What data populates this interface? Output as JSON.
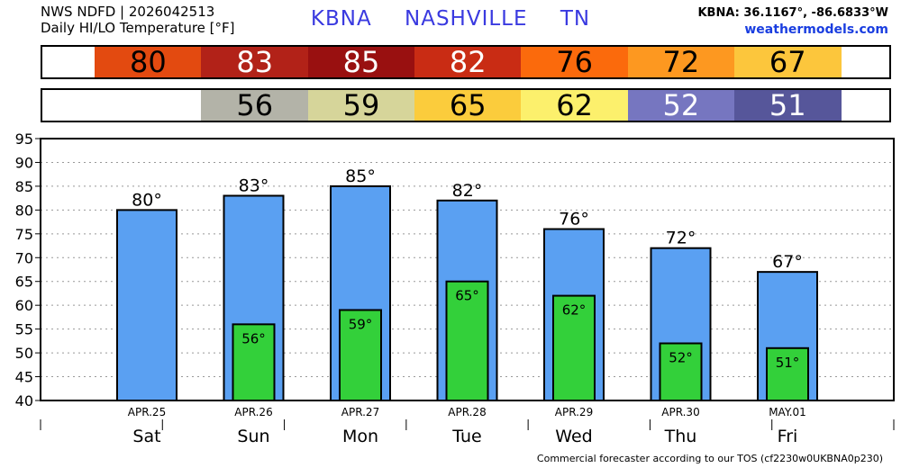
{
  "header": {
    "line1": "NWS NDFD | 2026042513",
    "line2": "Daily HI/LO Temperature [°F]",
    "station": "KBNA",
    "city": "NASHVILLE",
    "state": "TN",
    "coords": "KBNA: 36.1167°, -86.6833°W",
    "site": "weathermodels.com"
  },
  "footer": "Commercial forecaster according to our TOS (cf2230w0UKBNA0p230)",
  "hi_strip": [
    {
      "value": "80",
      "bg": "#e34a10",
      "fg": "#000000"
    },
    {
      "value": "83",
      "bg": "#b22218",
      "fg": "#ffffff"
    },
    {
      "value": "85",
      "bg": "#991010",
      "fg": "#ffffff"
    },
    {
      "value": "82",
      "bg": "#c92c14",
      "fg": "#ffffff"
    },
    {
      "value": "76",
      "bg": "#fb6a0c",
      "fg": "#000000"
    },
    {
      "value": "72",
      "bg": "#fd9820",
      "fg": "#000000"
    },
    {
      "value": "67",
      "bg": "#fcc63c",
      "fg": "#000000"
    }
  ],
  "lo_strip": [
    {
      "value": "56",
      "bg": "#b3b3a8",
      "fg": "#000000"
    },
    {
      "value": "59",
      "bg": "#d6d59a",
      "fg": "#000000"
    },
    {
      "value": "65",
      "bg": "#fbcc3c",
      "fg": "#000000"
    },
    {
      "value": "62",
      "bg": "#fcf06c",
      "fg": "#000000"
    },
    {
      "value": "52",
      "bg": "#7676c0",
      "fg": "#ffffff"
    },
    {
      "value": "51",
      "bg": "#56569a",
      "fg": "#ffffff"
    }
  ],
  "chart_data": {
    "type": "bar",
    "categories": [
      "Sat",
      "Sun",
      "Mon",
      "Tue",
      "Wed",
      "Thu",
      "Fri"
    ],
    "dates": [
      "APR.25",
      "APR.26",
      "APR.27",
      "APR.28",
      "APR.29",
      "APR.30",
      "MAY.01"
    ],
    "series": [
      {
        "values": [
          80,
          83,
          85,
          82,
          76,
          72,
          67
        ],
        "labels": [
          "80°",
          "83°",
          "85°",
          "82°",
          "76°",
          "72°",
          "67°"
        ],
        "color": "#5aa0f2"
      },
      {
        "values": [
          null,
          56,
          59,
          65,
          62,
          52,
          51
        ],
        "labels": [
          "",
          "56°",
          "59°",
          "65°",
          "62°",
          "52°",
          "51°"
        ],
        "color": "#33d03a"
      }
    ],
    "ylim": [
      40,
      95
    ],
    "yticks": [
      "40",
      "45",
      "50",
      "55",
      "60",
      "65",
      "70",
      "75",
      "80",
      "85",
      "90",
      "95"
    ],
    "grid": true,
    "title": "",
    "xlabel": "",
    "ylabel": ""
  }
}
